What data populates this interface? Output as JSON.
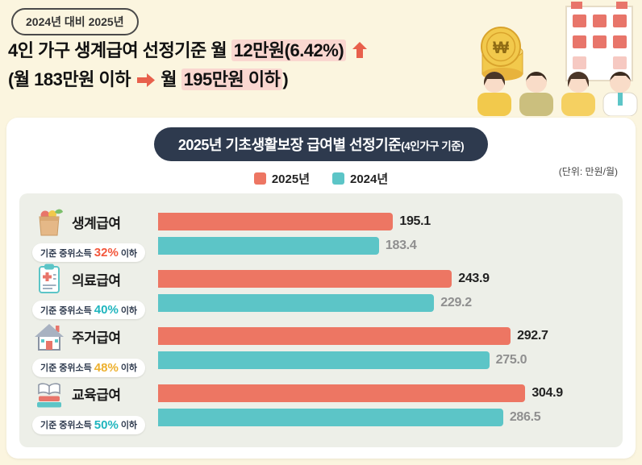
{
  "page": {
    "badge": "2024년 대비 2025년"
  },
  "headline": {
    "line1_pre": "4인 가구 생계급여 선정기준 월 ",
    "line1_highlight": "12만원(6.42%)",
    "line2_pre": "(월 183만원 이하 ",
    "line2_mid": " 월 ",
    "line2_highlight": "195만원 이하",
    "line2_post": ")"
  },
  "illustration": {
    "coin_symbol": "₩"
  },
  "colors": {
    "page_bg": "#FBF5DF",
    "accent_2025": "#ED7663",
    "accent_2024": "#5CC5C7",
    "highlight_bg": "#FAD7D0",
    "header_bar_bg": "#2E3A4E",
    "panel_bg": "#EDEFE8",
    "arrow": "#E8604C"
  },
  "chart": {
    "title_main": "2025년 기초생활보장 급여별 선정기준",
    "title_sub": "(4인가구 기준)",
    "unit_note": "(단위: 만원/월)"
  },
  "chart_data": {
    "type": "bar",
    "orientation": "horizontal",
    "title": "2025년 기초생활보장 급여별 선정기준(4인가구 기준)",
    "unit": "만원/월",
    "xmax": 375,
    "legend_position": "top-center",
    "legend": [
      {
        "name": "2025년",
        "color": "#ED7663"
      },
      {
        "name": "2024년",
        "color": "#5CC5C7"
      }
    ],
    "categories": [
      {
        "label": "생계급여",
        "criteria_prefix": "기준 중위소득",
        "criteria_percent": "32%",
        "criteria_suffix": "이하",
        "pct_color": "#F3573C",
        "icon": "grocery-basket-icon"
      },
      {
        "label": "의료급여",
        "criteria_prefix": "기준 중위소득",
        "criteria_percent": "40%",
        "criteria_suffix": "이하",
        "pct_color": "#1FB5BE",
        "icon": "medical-clipboard-icon"
      },
      {
        "label": "주거급여",
        "criteria_prefix": "기준 중위소득",
        "criteria_percent": "48%",
        "criteria_suffix": "이하",
        "pct_color": "#EDB02E",
        "icon": "house-icon"
      },
      {
        "label": "교육급여",
        "criteria_prefix": "기준 중위소득",
        "criteria_percent": "50%",
        "criteria_suffix": "이하",
        "pct_color": "#1FB5BE",
        "icon": "books-icon"
      }
    ],
    "series": [
      {
        "name": "2025년",
        "values": [
          195.1,
          243.9,
          292.7,
          304.9
        ],
        "labels": [
          "195.1",
          "243.9",
          "292.7",
          "304.9"
        ]
      },
      {
        "name": "2024년",
        "values": [
          183.4,
          229.2,
          275.0,
          286.5
        ],
        "labels": [
          "183.4",
          "229.2",
          "275.0",
          "286.5"
        ]
      }
    ]
  }
}
